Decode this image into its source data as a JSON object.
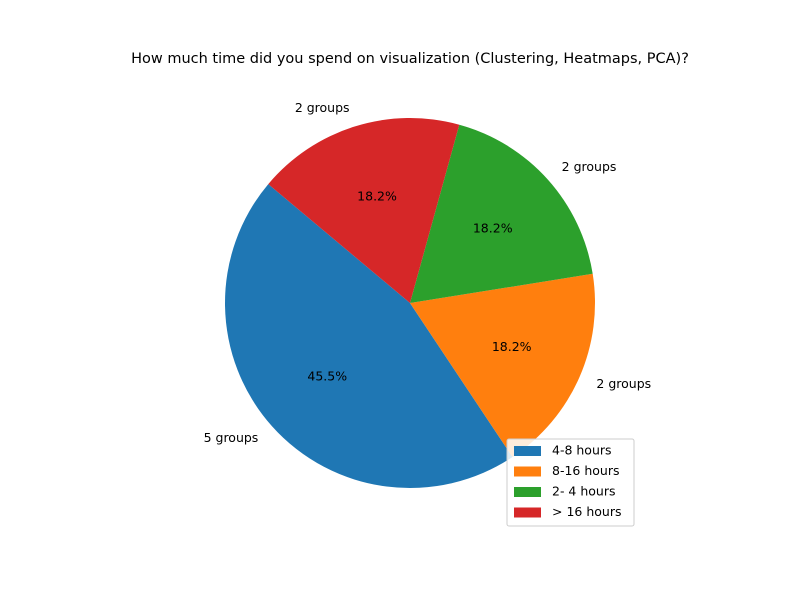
{
  "chart_data": {
    "type": "pie",
    "title": "How much time did you spend on  visualization  (Clustering, Heatmaps, PCA)?",
    "slices": [
      {
        "legend": "4-8 hours",
        "value": 5,
        "outer_label": "5 groups",
        "pct_label": "45.5%",
        "color": "#1f77b4"
      },
      {
        "legend": "8-16 hours",
        "value": 2,
        "outer_label": "2 groups",
        "pct_label": "18.2%",
        "color": "#ff7f0e"
      },
      {
        "legend": "2- 4 hours",
        "value": 2,
        "outer_label": "2 groups",
        "pct_label": "18.2%",
        "color": "#2ca02c"
      },
      {
        "legend": "> 16 hours",
        "value": 2,
        "outer_label": "2 groups",
        "pct_label": "18.2%",
        "color": "#d62728"
      }
    ],
    "start_angle_deg": 140,
    "legend_placement": "lower-right"
  }
}
